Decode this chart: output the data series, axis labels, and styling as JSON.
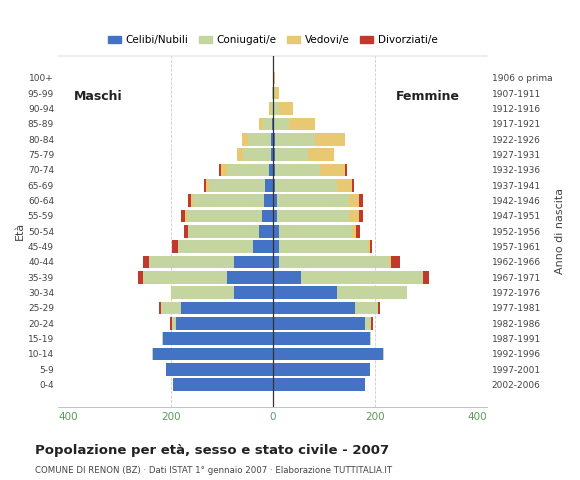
{
  "title": "Popolazione per età, sesso e stato civile - 2007",
  "subtitle": "COMUNE DI RENON (BZ) · Dati ISTAT 1° gennaio 2007 · Elaborazione TUTTITALIA.IT",
  "ylabel_left": "Età",
  "ylabel_right": "Anno di nascita",
  "xlim": [
    -420,
    420
  ],
  "age_groups": [
    "100+",
    "95-99",
    "90-94",
    "85-89",
    "80-84",
    "75-79",
    "70-74",
    "65-69",
    "60-64",
    "55-59",
    "50-54",
    "45-49",
    "40-44",
    "35-39",
    "30-34",
    "25-29",
    "20-24",
    "15-19",
    "10-14",
    "5-9",
    "0-4"
  ],
  "birth_years": [
    "1906 o prima",
    "1907-1911",
    "1912-1916",
    "1917-1921",
    "1922-1926",
    "1927-1931",
    "1932-1936",
    "1937-1941",
    "1942-1946",
    "1947-1951",
    "1952-1956",
    "1957-1961",
    "1962-1966",
    "1967-1971",
    "1972-1976",
    "1977-1981",
    "1982-1986",
    "1987-1991",
    "1992-1996",
    "1997-2001",
    "2002-2006"
  ],
  "colors": {
    "celibi": "#4472C4",
    "coniugati": "#C5D5A0",
    "vedovi": "#E8C870",
    "divorziati": "#C0392B"
  },
  "legend_labels": [
    "Celibi/Nubili",
    "Coniugati/e",
    "Vedovi/e",
    "Divorziati/e"
  ],
  "maschi_celibi": [
    0,
    0,
    0,
    2,
    3,
    4,
    8,
    15,
    18,
    22,
    28,
    38,
    75,
    90,
    75,
    180,
    190,
    215,
    235,
    210,
    195
  ],
  "maschi_coniugati": [
    0,
    2,
    4,
    18,
    45,
    55,
    82,
    110,
    138,
    145,
    138,
    148,
    168,
    165,
    125,
    38,
    8,
    2,
    2,
    0,
    0
  ],
  "maschi_vedovi": [
    0,
    0,
    4,
    8,
    12,
    12,
    12,
    5,
    4,
    4,
    0,
    0,
    0,
    0,
    0,
    0,
    0,
    0,
    0,
    0,
    0
  ],
  "maschi_divorziati": [
    0,
    0,
    0,
    0,
    0,
    0,
    4,
    4,
    5,
    8,
    8,
    12,
    12,
    8,
    0,
    4,
    4,
    0,
    0,
    0,
    0
  ],
  "femmine_celibi": [
    0,
    0,
    0,
    2,
    4,
    4,
    4,
    4,
    8,
    8,
    12,
    12,
    12,
    55,
    125,
    160,
    180,
    190,
    215,
    190,
    180
  ],
  "femmine_coniugati": [
    0,
    4,
    12,
    30,
    78,
    65,
    88,
    122,
    142,
    142,
    142,
    175,
    215,
    238,
    138,
    45,
    12,
    2,
    2,
    0,
    0
  ],
  "femmine_vedovi": [
    4,
    8,
    28,
    50,
    60,
    50,
    50,
    28,
    18,
    18,
    8,
    4,
    4,
    0,
    0,
    0,
    0,
    0,
    0,
    0,
    0
  ],
  "femmine_divorziati": [
    0,
    0,
    0,
    0,
    0,
    0,
    4,
    4,
    8,
    8,
    8,
    4,
    18,
    12,
    0,
    4,
    4,
    0,
    0,
    0,
    0
  ],
  "background_color": "#ffffff",
  "grid_color": "#cccccc",
  "bar_height": 0.82
}
